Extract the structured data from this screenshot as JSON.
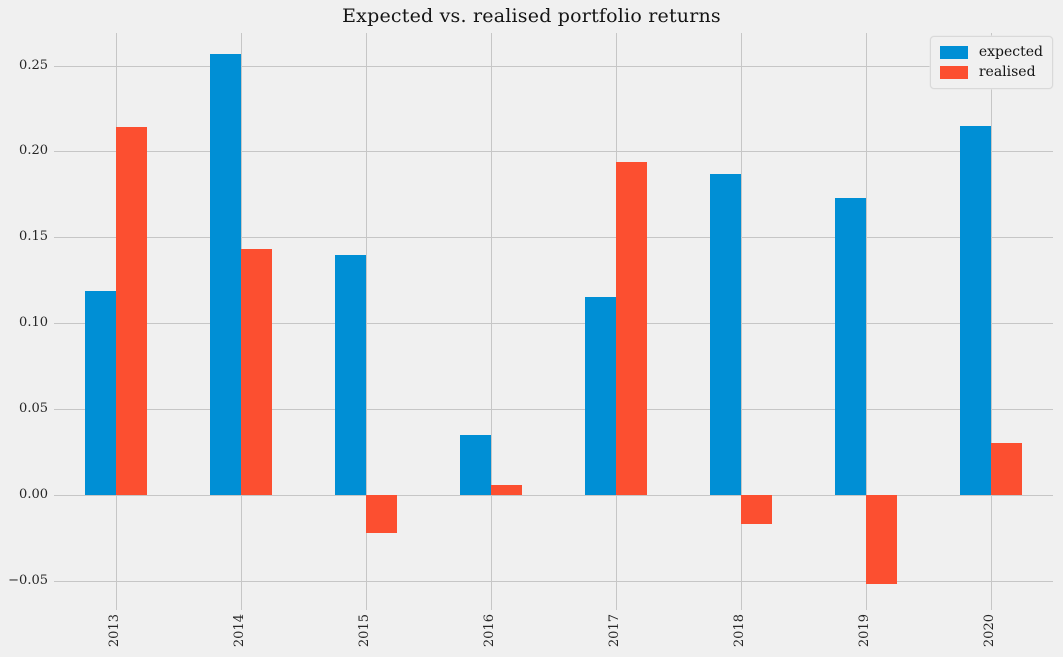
{
  "figure": {
    "background": "#f0f0f0",
    "grid_color": "#c6c6c6",
    "text_color": "#262626"
  },
  "chart_data": {
    "type": "bar",
    "title": "Expected vs. realised portfolio returns",
    "xlabel": "",
    "ylabel": "",
    "categories": [
      "2013",
      "2014",
      "2015",
      "2016",
      "2017",
      "2018",
      "2019",
      "2020"
    ],
    "series": [
      {
        "name": "expected",
        "color": "#008fd5",
        "values": [
          0.119,
          0.257,
          0.14,
          0.035,
          0.115,
          0.187,
          0.173,
          0.215
        ]
      },
      {
        "name": "realised",
        "color": "#fc4f30",
        "values": [
          0.214,
          0.143,
          -0.022,
          0.006,
          0.194,
          -0.017,
          -0.052,
          0.03
        ]
      }
    ],
    "ylim": [
      -0.067,
      0.269
    ],
    "yticks": [
      {
        "value": 0.25,
        "label": "0.25"
      },
      {
        "value": 0.2,
        "label": "0.20"
      },
      {
        "value": 0.15,
        "label": "0.15"
      },
      {
        "value": 0.1,
        "label": "0.10"
      },
      {
        "value": 0.05,
        "label": "0.05"
      },
      {
        "value": 0.0,
        "label": "0.00"
      },
      {
        "value": -0.05,
        "label": "−0.05"
      }
    ],
    "grid": true,
    "legend_position": "upper right"
  },
  "legend": {
    "items": [
      {
        "label": "expected",
        "color": "#008fd5"
      },
      {
        "label": "realised",
        "color": "#fc4f30"
      }
    ]
  }
}
